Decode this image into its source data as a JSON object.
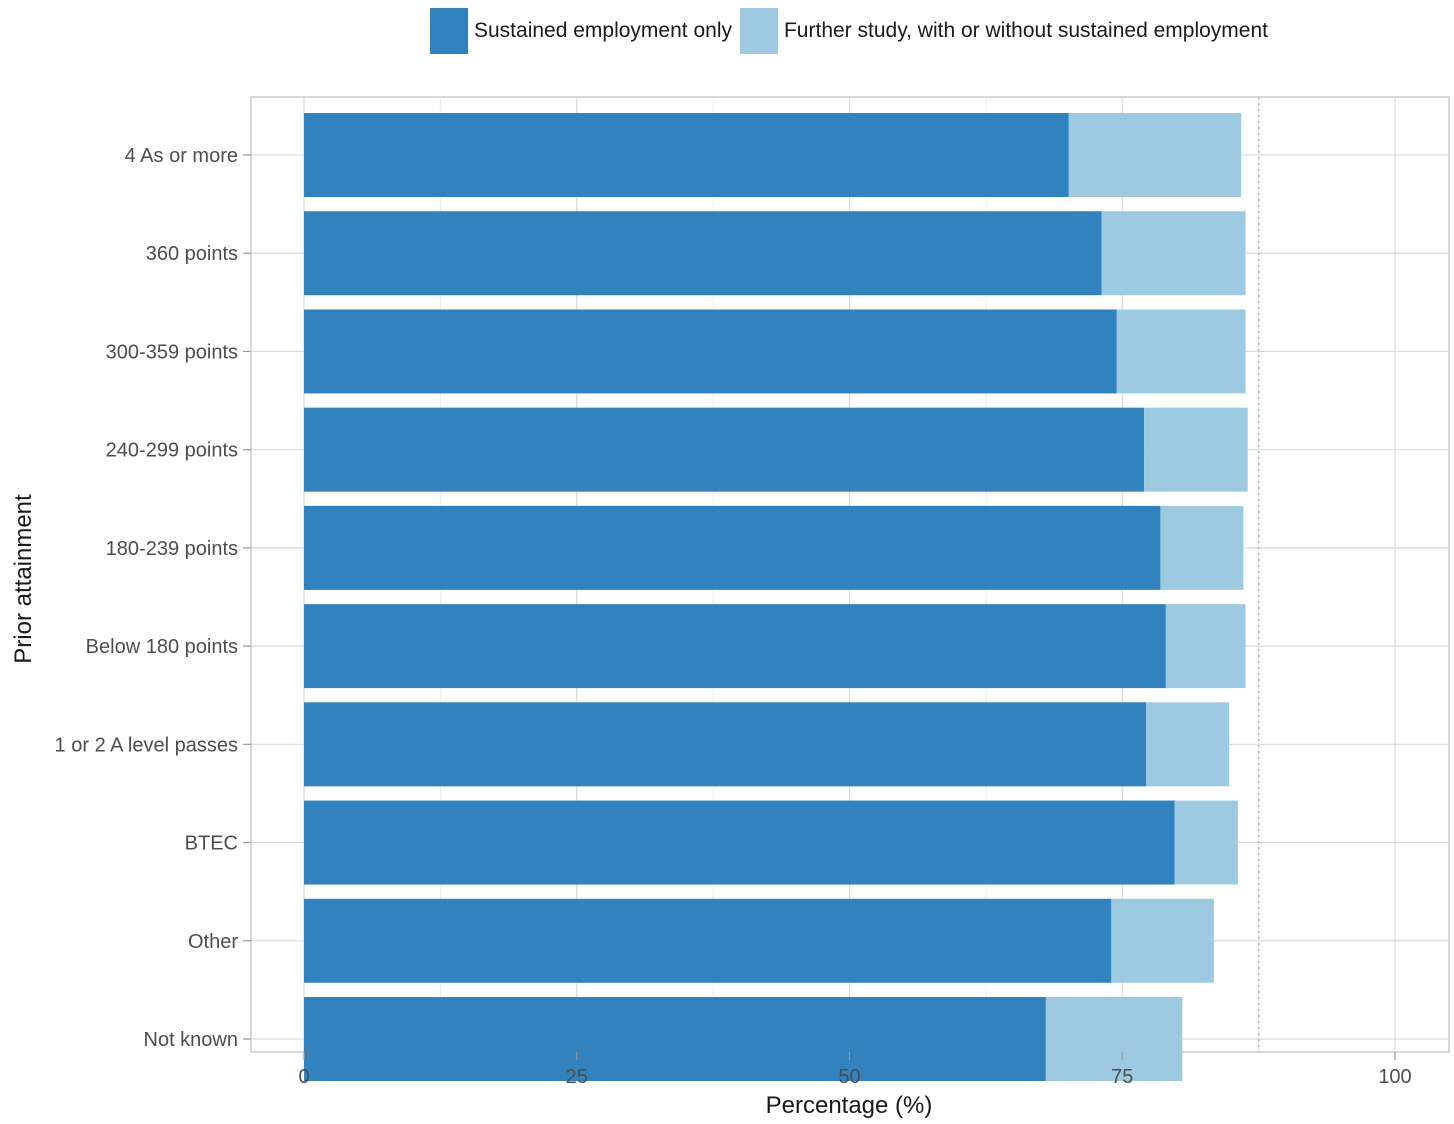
{
  "legend": {
    "items": [
      {
        "label": "Sustained employment only",
        "color": "#3182bd"
      },
      {
        "label": "Further study, with or without sustained employment",
        "color": "#9ecae1"
      }
    ]
  },
  "chart_data": {
    "type": "bar",
    "orientation": "horizontal",
    "stacked": true,
    "title": "",
    "xlabel": "Percentage (%)",
    "ylabel": "Prior attainment",
    "xlim": [
      0,
      100
    ],
    "x_ticks": [
      0,
      25,
      50,
      75,
      100
    ],
    "grid": true,
    "legend_position": "top",
    "reference_line": {
      "x": 87.5,
      "style": "dotted"
    },
    "categories": [
      "4 As or more",
      "360 points",
      "300-359 points",
      "240-299 points",
      "180-239 points",
      "Below 180 points",
      "1 or 2 A level passes",
      "BTEC",
      "Other",
      "Not known"
    ],
    "series": [
      {
        "name": "Sustained employment only",
        "color": "#3182bd",
        "values": [
          70.1,
          73.1,
          74.5,
          77.0,
          78.5,
          79.0,
          77.2,
          79.8,
          74.0,
          68.0
        ]
      },
      {
        "name": "Further study, with or without sustained employment",
        "color": "#9ecae1",
        "values": [
          15.8,
          13.2,
          11.8,
          9.5,
          7.6,
          7.3,
          7.6,
          5.8,
          9.4,
          12.5
        ]
      }
    ]
  }
}
